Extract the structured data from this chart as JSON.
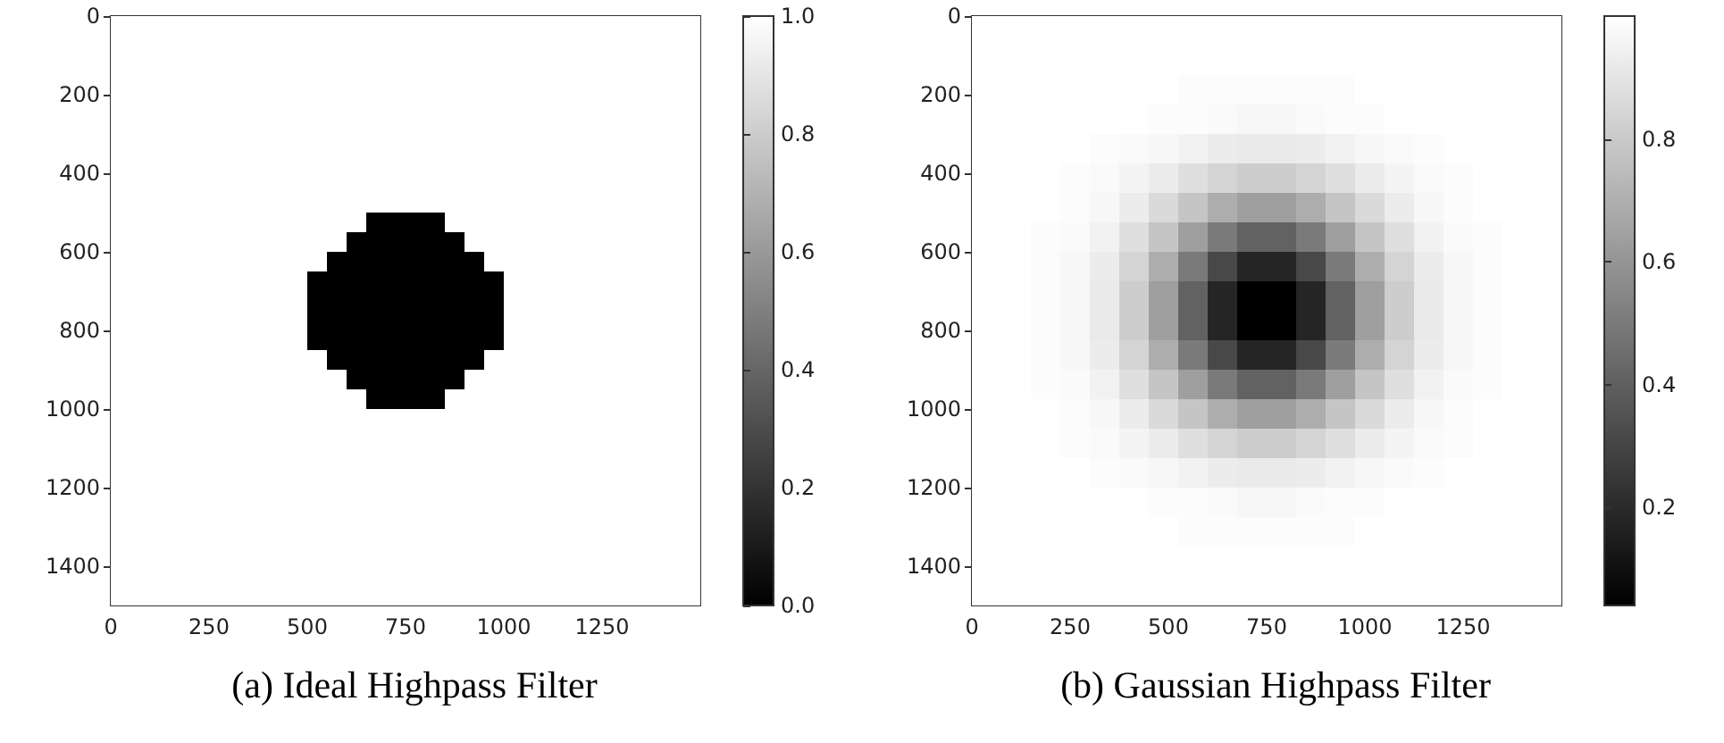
{
  "chart_data": [
    {
      "type": "heatmap",
      "title": "(a) Ideal Highpass Filter",
      "xlim": [
        0,
        1500
      ],
      "ylim": [
        1500,
        0
      ],
      "xticks": [
        0,
        250,
        500,
        750,
        1000,
        1250
      ],
      "yticks": [
        0,
        200,
        400,
        600,
        800,
        1000,
        1200,
        1400
      ],
      "clim": [
        0,
        1
      ],
      "cticks": [
        {
          "value": 0,
          "label": "0.0"
        },
        0.2,
        0.4,
        0.6,
        0.8,
        {
          "value": 1,
          "label": "1.0"
        }
      ],
      "cells": [
        [
          1,
          1,
          1,
          1,
          1,
          1,
          1,
          1,
          1,
          1,
          1,
          1,
          1,
          1,
          1,
          1,
          1,
          1,
          1,
          1,
          1,
          1,
          1,
          1,
          1,
          1,
          1,
          1,
          1,
          1
        ],
        [
          1,
          1,
          1,
          1,
          1,
          1,
          1,
          1,
          1,
          1,
          1,
          1,
          1,
          1,
          1,
          1,
          1,
          1,
          1,
          1,
          1,
          1,
          1,
          1,
          1,
          1,
          1,
          1,
          1,
          1
        ],
        [
          1,
          1,
          1,
          1,
          1,
          1,
          1,
          1,
          1,
          1,
          1,
          1,
          1,
          1,
          1,
          1,
          1,
          1,
          1,
          1,
          1,
          1,
          1,
          1,
          1,
          1,
          1,
          1,
          1,
          1
        ],
        [
          1,
          1,
          1,
          1,
          1,
          1,
          1,
          1,
          1,
          1,
          1,
          1,
          1,
          1,
          1,
          1,
          1,
          1,
          1,
          1,
          1,
          1,
          1,
          1,
          1,
          1,
          1,
          1,
          1,
          1
        ],
        [
          1,
          1,
          1,
          1,
          1,
          1,
          1,
          1,
          1,
          1,
          1,
          1,
          1,
          1,
          1,
          1,
          1,
          1,
          1,
          1,
          1,
          1,
          1,
          1,
          1,
          1,
          1,
          1,
          1,
          1
        ],
        [
          1,
          1,
          1,
          1,
          1,
          1,
          1,
          1,
          1,
          1,
          1,
          1,
          1,
          1,
          1,
          1,
          1,
          1,
          1,
          1,
          1,
          1,
          1,
          1,
          1,
          1,
          1,
          1,
          1,
          1
        ],
        [
          1,
          1,
          1,
          1,
          1,
          1,
          1,
          1,
          1,
          1,
          1,
          1,
          1,
          1,
          1,
          1,
          1,
          1,
          1,
          1,
          1,
          1,
          1,
          1,
          1,
          1,
          1,
          1,
          1,
          1
        ],
        [
          1,
          1,
          1,
          1,
          1,
          1,
          1,
          1,
          1,
          1,
          1,
          1,
          1,
          1,
          1,
          1,
          1,
          1,
          1,
          1,
          1,
          1,
          1,
          1,
          1,
          1,
          1,
          1,
          1,
          1
        ],
        [
          1,
          1,
          1,
          1,
          1,
          1,
          1,
          1,
          1,
          1,
          1,
          1,
          1,
          1,
          1,
          1,
          1,
          1,
          1,
          1,
          1,
          1,
          1,
          1,
          1,
          1,
          1,
          1,
          1,
          1
        ],
        [
          1,
          1,
          1,
          1,
          1,
          1,
          1,
          1,
          1,
          1,
          1,
          1,
          1,
          1,
          1,
          1,
          1,
          1,
          1,
          1,
          1,
          1,
          1,
          1,
          1,
          1,
          1,
          1,
          1,
          1
        ],
        [
          1,
          1,
          1,
          1,
          1,
          1,
          1,
          1,
          1,
          1,
          1,
          1,
          1,
          0,
          0,
          0,
          0,
          1,
          1,
          1,
          1,
          1,
          1,
          1,
          1,
          1,
          1,
          1,
          1,
          1
        ],
        [
          1,
          1,
          1,
          1,
          1,
          1,
          1,
          1,
          1,
          1,
          1,
          1,
          0,
          0,
          0,
          0,
          0,
          0,
          1,
          1,
          1,
          1,
          1,
          1,
          1,
          1,
          1,
          1,
          1,
          1
        ],
        [
          1,
          1,
          1,
          1,
          1,
          1,
          1,
          1,
          1,
          1,
          1,
          0,
          0,
          0,
          0,
          0,
          0,
          0,
          0,
          1,
          1,
          1,
          1,
          1,
          1,
          1,
          1,
          1,
          1,
          1
        ],
        [
          1,
          1,
          1,
          1,
          1,
          1,
          1,
          1,
          1,
          1,
          0,
          0,
          0,
          0,
          0,
          0,
          0,
          0,
          0,
          0,
          1,
          1,
          1,
          1,
          1,
          1,
          1,
          1,
          1,
          1
        ],
        [
          1,
          1,
          1,
          1,
          1,
          1,
          1,
          1,
          1,
          1,
          0,
          0,
          0,
          0,
          0,
          0,
          0,
          0,
          0,
          0,
          1,
          1,
          1,
          1,
          1,
          1,
          1,
          1,
          1,
          1
        ],
        [
          1,
          1,
          1,
          1,
          1,
          1,
          1,
          1,
          1,
          1,
          0,
          0,
          0,
          0,
          0,
          0,
          0,
          0,
          0,
          0,
          1,
          1,
          1,
          1,
          1,
          1,
          1,
          1,
          1,
          1
        ],
        [
          1,
          1,
          1,
          1,
          1,
          1,
          1,
          1,
          1,
          1,
          0,
          0,
          0,
          0,
          0,
          0,
          0,
          0,
          0,
          0,
          1,
          1,
          1,
          1,
          1,
          1,
          1,
          1,
          1,
          1
        ],
        [
          1,
          1,
          1,
          1,
          1,
          1,
          1,
          1,
          1,
          1,
          1,
          0,
          0,
          0,
          0,
          0,
          0,
          0,
          0,
          1,
          1,
          1,
          1,
          1,
          1,
          1,
          1,
          1,
          1,
          1
        ],
        [
          1,
          1,
          1,
          1,
          1,
          1,
          1,
          1,
          1,
          1,
          1,
          1,
          0,
          0,
          0,
          0,
          0,
          0,
          1,
          1,
          1,
          1,
          1,
          1,
          1,
          1,
          1,
          1,
          1,
          1
        ],
        [
          1,
          1,
          1,
          1,
          1,
          1,
          1,
          1,
          1,
          1,
          1,
          1,
          1,
          0,
          0,
          0,
          0,
          1,
          1,
          1,
          1,
          1,
          1,
          1,
          1,
          1,
          1,
          1,
          1,
          1
        ],
        [
          1,
          1,
          1,
          1,
          1,
          1,
          1,
          1,
          1,
          1,
          1,
          1,
          1,
          1,
          1,
          1,
          1,
          1,
          1,
          1,
          1,
          1,
          1,
          1,
          1,
          1,
          1,
          1,
          1,
          1
        ],
        [
          1,
          1,
          1,
          1,
          1,
          1,
          1,
          1,
          1,
          1,
          1,
          1,
          1,
          1,
          1,
          1,
          1,
          1,
          1,
          1,
          1,
          1,
          1,
          1,
          1,
          1,
          1,
          1,
          1,
          1
        ],
        [
          1,
          1,
          1,
          1,
          1,
          1,
          1,
          1,
          1,
          1,
          1,
          1,
          1,
          1,
          1,
          1,
          1,
          1,
          1,
          1,
          1,
          1,
          1,
          1,
          1,
          1,
          1,
          1,
          1,
          1
        ],
        [
          1,
          1,
          1,
          1,
          1,
          1,
          1,
          1,
          1,
          1,
          1,
          1,
          1,
          1,
          1,
          1,
          1,
          1,
          1,
          1,
          1,
          1,
          1,
          1,
          1,
          1,
          1,
          1,
          1,
          1
        ],
        [
          1,
          1,
          1,
          1,
          1,
          1,
          1,
          1,
          1,
          1,
          1,
          1,
          1,
          1,
          1,
          1,
          1,
          1,
          1,
          1,
          1,
          1,
          1,
          1,
          1,
          1,
          1,
          1,
          1,
          1
        ],
        [
          1,
          1,
          1,
          1,
          1,
          1,
          1,
          1,
          1,
          1,
          1,
          1,
          1,
          1,
          1,
          1,
          1,
          1,
          1,
          1,
          1,
          1,
          1,
          1,
          1,
          1,
          1,
          1,
          1,
          1
        ],
        [
          1,
          1,
          1,
          1,
          1,
          1,
          1,
          1,
          1,
          1,
          1,
          1,
          1,
          1,
          1,
          1,
          1,
          1,
          1,
          1,
          1,
          1,
          1,
          1,
          1,
          1,
          1,
          1,
          1,
          1
        ],
        [
          1,
          1,
          1,
          1,
          1,
          1,
          1,
          1,
          1,
          1,
          1,
          1,
          1,
          1,
          1,
          1,
          1,
          1,
          1,
          1,
          1,
          1,
          1,
          1,
          1,
          1,
          1,
          1,
          1,
          1
        ],
        [
          1,
          1,
          1,
          1,
          1,
          1,
          1,
          1,
          1,
          1,
          1,
          1,
          1,
          1,
          1,
          1,
          1,
          1,
          1,
          1,
          1,
          1,
          1,
          1,
          1,
          1,
          1,
          1,
          1,
          1
        ],
        [
          1,
          1,
          1,
          1,
          1,
          1,
          1,
          1,
          1,
          1,
          1,
          1,
          1,
          1,
          1,
          1,
          1,
          1,
          1,
          1,
          1,
          1,
          1,
          1,
          1,
          1,
          1,
          1,
          1,
          1
        ]
      ]
    },
    {
      "type": "heatmap",
      "title": "(b) Gaussian Highpass Filter",
      "xlim": [
        0,
        1500
      ],
      "ylim": [
        1500,
        0
      ],
      "xticks": [
        0,
        250,
        500,
        750,
        1000,
        1250
      ],
      "yticks": [
        0,
        200,
        400,
        600,
        800,
        1000,
        1200,
        1400
      ],
      "clim": [
        0.04,
        1
      ],
      "cticks": [
        0.2,
        0.4,
        0.6,
        0.8
      ],
      "cells": [
        [
          1,
          1,
          1,
          1,
          1,
          1,
          1,
          1,
          1,
          1,
          1,
          1,
          1,
          1,
          1,
          1,
          1,
          1,
          1,
          1
        ],
        [
          1,
          1,
          1,
          1,
          1,
          1,
          1,
          1,
          1,
          1,
          1,
          1,
          1,
          1,
          1,
          1,
          1,
          1,
          1,
          1
        ],
        [
          1,
          1,
          1,
          1,
          1,
          1,
          1,
          0.99,
          0.99,
          0.99,
          0.99,
          0.99,
          0.99,
          1,
          1,
          1,
          1,
          1,
          1,
          1
        ],
        [
          1,
          1,
          1,
          1,
          1,
          1,
          0.99,
          0.99,
          0.98,
          0.97,
          0.97,
          0.98,
          0.99,
          0.99,
          1,
          1,
          1,
          1,
          1,
          1
        ],
        [
          1,
          1,
          1,
          1,
          0.99,
          0.98,
          0.97,
          0.95,
          0.93,
          0.92,
          0.92,
          0.93,
          0.95,
          0.97,
          0.98,
          0.99,
          1,
          1,
          1,
          1
        ],
        [
          1,
          1,
          1,
          0.99,
          0.98,
          0.96,
          0.93,
          0.88,
          0.84,
          0.81,
          0.81,
          0.84,
          0.88,
          0.93,
          0.96,
          0.98,
          0.99,
          1,
          1,
          1
        ],
        [
          1,
          1,
          1,
          0.99,
          0.97,
          0.93,
          0.86,
          0.78,
          0.69,
          0.64,
          0.64,
          0.69,
          0.78,
          0.86,
          0.93,
          0.97,
          0.99,
          1,
          1,
          1
        ],
        [
          1,
          1,
          0.99,
          0.98,
          0.95,
          0.88,
          0.78,
          0.64,
          0.5,
          0.41,
          0.41,
          0.5,
          0.64,
          0.78,
          0.88,
          0.95,
          0.98,
          0.99,
          1,
          1
        ],
        [
          1,
          1,
          0.99,
          0.97,
          0.93,
          0.84,
          0.69,
          0.5,
          0.31,
          0.18,
          0.18,
          0.31,
          0.5,
          0.69,
          0.84,
          0.93,
          0.97,
          0.99,
          1,
          1
        ],
        [
          1,
          1,
          0.99,
          0.97,
          0.92,
          0.81,
          0.64,
          0.41,
          0.18,
          0.04,
          0.04,
          0.18,
          0.41,
          0.64,
          0.81,
          0.92,
          0.97,
          0.99,
          1,
          1
        ],
        [
          1,
          1,
          0.99,
          0.97,
          0.92,
          0.81,
          0.64,
          0.41,
          0.18,
          0.04,
          0.04,
          0.18,
          0.41,
          0.64,
          0.81,
          0.92,
          0.97,
          0.99,
          1,
          1
        ],
        [
          1,
          1,
          0.99,
          0.97,
          0.93,
          0.84,
          0.69,
          0.5,
          0.31,
          0.18,
          0.18,
          0.31,
          0.5,
          0.69,
          0.84,
          0.93,
          0.97,
          0.99,
          1,
          1
        ],
        [
          1,
          1,
          0.99,
          0.98,
          0.95,
          0.88,
          0.78,
          0.64,
          0.5,
          0.41,
          0.41,
          0.5,
          0.64,
          0.78,
          0.88,
          0.95,
          0.98,
          0.99,
          1,
          1
        ],
        [
          1,
          1,
          1,
          0.99,
          0.97,
          0.93,
          0.86,
          0.78,
          0.69,
          0.64,
          0.64,
          0.69,
          0.78,
          0.86,
          0.93,
          0.97,
          0.99,
          1,
          1,
          1
        ],
        [
          1,
          1,
          1,
          0.99,
          0.98,
          0.96,
          0.93,
          0.88,
          0.84,
          0.81,
          0.81,
          0.84,
          0.88,
          0.93,
          0.96,
          0.98,
          0.99,
          1,
          1,
          1
        ],
        [
          1,
          1,
          1,
          1,
          0.99,
          0.98,
          0.97,
          0.95,
          0.93,
          0.92,
          0.92,
          0.93,
          0.95,
          0.97,
          0.98,
          0.99,
          1,
          1,
          1,
          1
        ],
        [
          1,
          1,
          1,
          1,
          1,
          1,
          0.99,
          0.99,
          0.98,
          0.97,
          0.97,
          0.98,
          0.99,
          0.99,
          1,
          1,
          1,
          1,
          1,
          1
        ],
        [
          1,
          1,
          1,
          1,
          1,
          1,
          1,
          0.99,
          0.99,
          0.99,
          0.99,
          0.99,
          0.99,
          1,
          1,
          1,
          1,
          1,
          1,
          1
        ],
        [
          1,
          1,
          1,
          1,
          1,
          1,
          1,
          1,
          1,
          1,
          1,
          1,
          1,
          1,
          1,
          1,
          1,
          1,
          1,
          1
        ],
        [
          1,
          1,
          1,
          1,
          1,
          1,
          1,
          1,
          1,
          1,
          1,
          1,
          1,
          1,
          1,
          1,
          1,
          1,
          1,
          1
        ]
      ]
    }
  ]
}
